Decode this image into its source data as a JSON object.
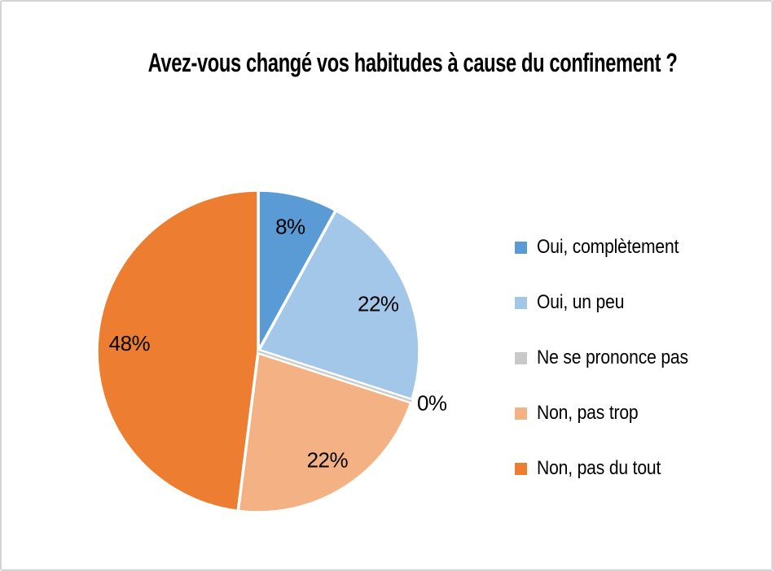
{
  "chart_data": {
    "type": "pie",
    "title": "Avez-vous changé vos habitudes à cause du confinement ?",
    "legend_position": "right",
    "data_labels": "percent",
    "start_angle_deg": -90,
    "direction": "clockwise",
    "background_color": "#ffffff",
    "border_color": "#d4d4d4",
    "label_color": "#000000",
    "separator_color": "#ffffff",
    "slices": [
      {
        "label": "Oui, complètement",
        "value": 8,
        "display": "8%",
        "color": "#5B9BD5"
      },
      {
        "label": "Oui, un peu",
        "value": 22,
        "display": "22%",
        "color": "#A3C7E9"
      },
      {
        "label": "Ne se prononce pas",
        "value": 0,
        "display": "0%",
        "color": "#C9C9C9"
      },
      {
        "label": "Non, pas trop",
        "value": 22,
        "display": "22%",
        "color": "#F4B183"
      },
      {
        "label": "Non, pas du tout",
        "value": 48,
        "display": "48%",
        "color": "#ED7D31"
      }
    ]
  }
}
